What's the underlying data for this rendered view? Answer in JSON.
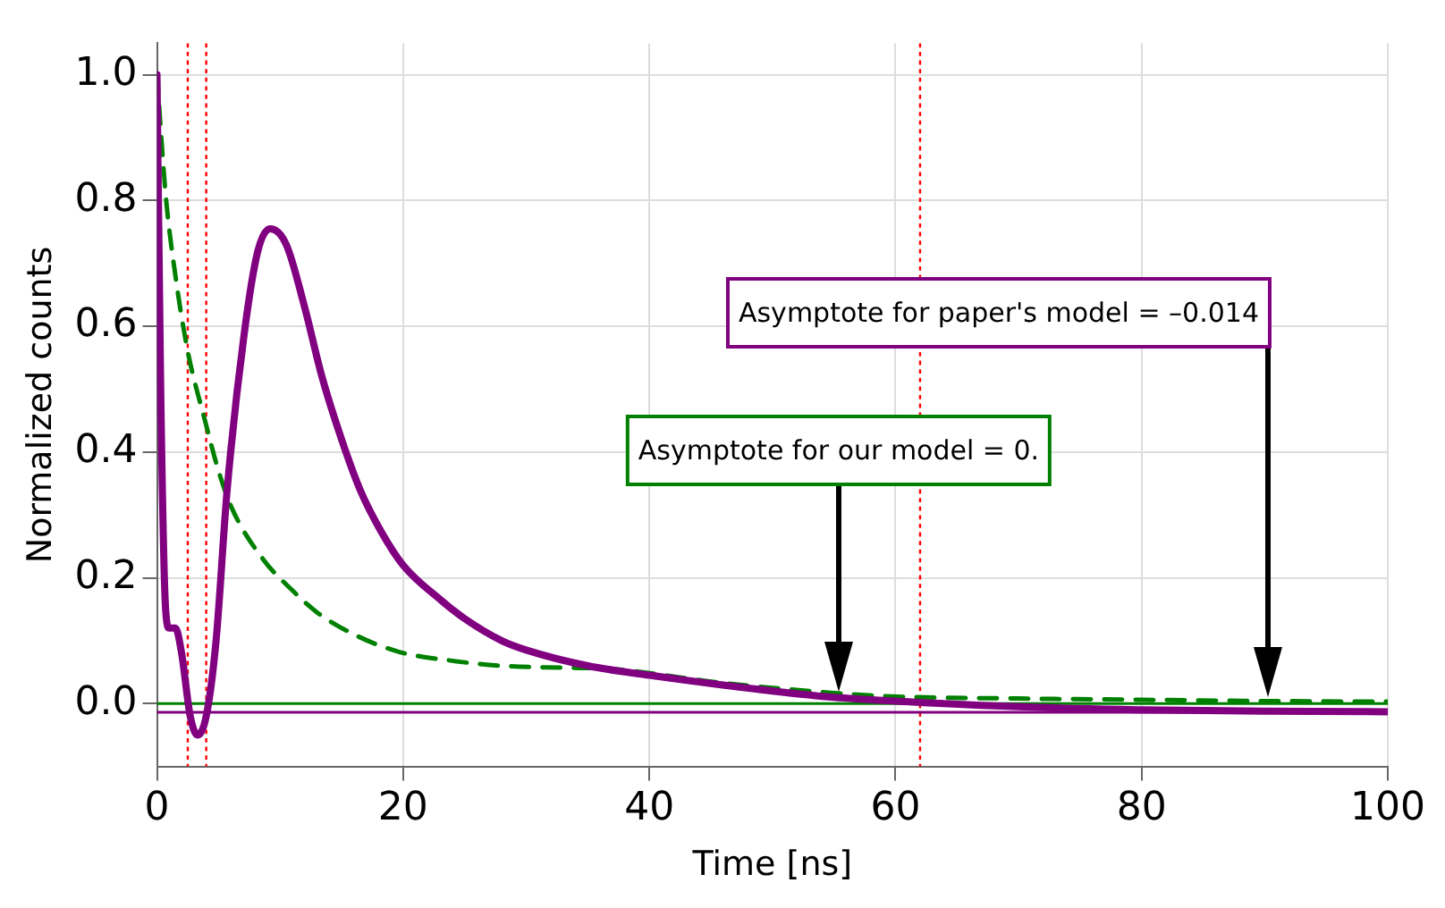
{
  "chart_data": {
    "type": "line",
    "xlabel": "Time [ns]",
    "ylabel": "Normalized counts",
    "xlim": [
      0,
      100
    ],
    "xticks": [
      0,
      20,
      40,
      60,
      80,
      100
    ],
    "ylim": [
      -0.1,
      1.05
    ],
    "yticks": [
      {
        "value": 0,
        "label": "0.0"
      },
      {
        "value": 0.2,
        "label": "0.2"
      },
      {
        "value": 0.4,
        "label": "0.4"
      },
      {
        "value": 0.6,
        "label": "0.6"
      },
      {
        "value": 0.8,
        "label": "0.8"
      },
      {
        "value": 1,
        "label": "1.0"
      }
    ],
    "grid": true,
    "legend": false,
    "marker": "none",
    "series": [
      {
        "color": "#800080",
        "line_style": "solid",
        "x": [
          0,
          0.3,
          0.7,
          1,
          1.5,
          2,
          2.7,
          3.3,
          4,
          4.8,
          5.7,
          7.1,
          8.2,
          9.2,
          10.5,
          12,
          13.4,
          15,
          16.5,
          18.2,
          20,
          23.1,
          25,
          28,
          30,
          35,
          40,
          45,
          50,
          55,
          60,
          70,
          80,
          90,
          100
        ],
        "values": [
          1.0,
          0.5,
          0.15,
          0.12,
          0.12,
          0.08,
          -0.02,
          -0.05,
          -0.02,
          0.1,
          0.34,
          0.59,
          0.72,
          0.755,
          0.73,
          0.63,
          0.52,
          0.42,
          0.34,
          0.274,
          0.22,
          0.164,
          0.135,
          0.1,
          0.085,
          0.06,
          0.045,
          0.032,
          0.02,
          0.01,
          0.004,
          -0.005,
          -0.01,
          -0.012,
          -0.013
        ]
      },
      {
        "color": "#008000",
        "line_style": "dashed",
        "x": [
          0,
          0.7,
          1.5,
          2.5,
          3.9,
          5,
          6.1,
          8.6,
          11,
          13,
          16,
          19.7,
          24,
          28,
          33,
          37,
          45,
          50,
          59,
          70,
          80,
          90,
          100
        ],
        "values": [
          1.0,
          0.81,
          0.68,
          0.56,
          0.45,
          0.37,
          0.31,
          0.23,
          0.18,
          0.145,
          0.11,
          0.082,
          0.068,
          0.06,
          0.057,
          0.055,
          0.035,
          0.025,
          0.012,
          0.008,
          0.006,
          0.004,
          0.003
        ]
      }
    ],
    "ref_lines": [
      {
        "axis": "x",
        "value": 2.5,
        "color": "#ff0000",
        "line_style": "dotted"
      },
      {
        "axis": "x",
        "value": 4,
        "color": "#ff0000",
        "line_style": "dotted"
      },
      {
        "axis": "x",
        "value": 62,
        "color": "#ff0000",
        "line_style": "dotted"
      },
      {
        "axis": "y",
        "value": 0,
        "color": "#008000",
        "line_style": "solid"
      },
      {
        "axis": "y",
        "value": -0.014,
        "color": "#800080",
        "line_style": "solid"
      }
    ],
    "annotations": [
      "Asymptote for paper's model = –0.014",
      "Asymptote for our model = 0."
    ]
  }
}
